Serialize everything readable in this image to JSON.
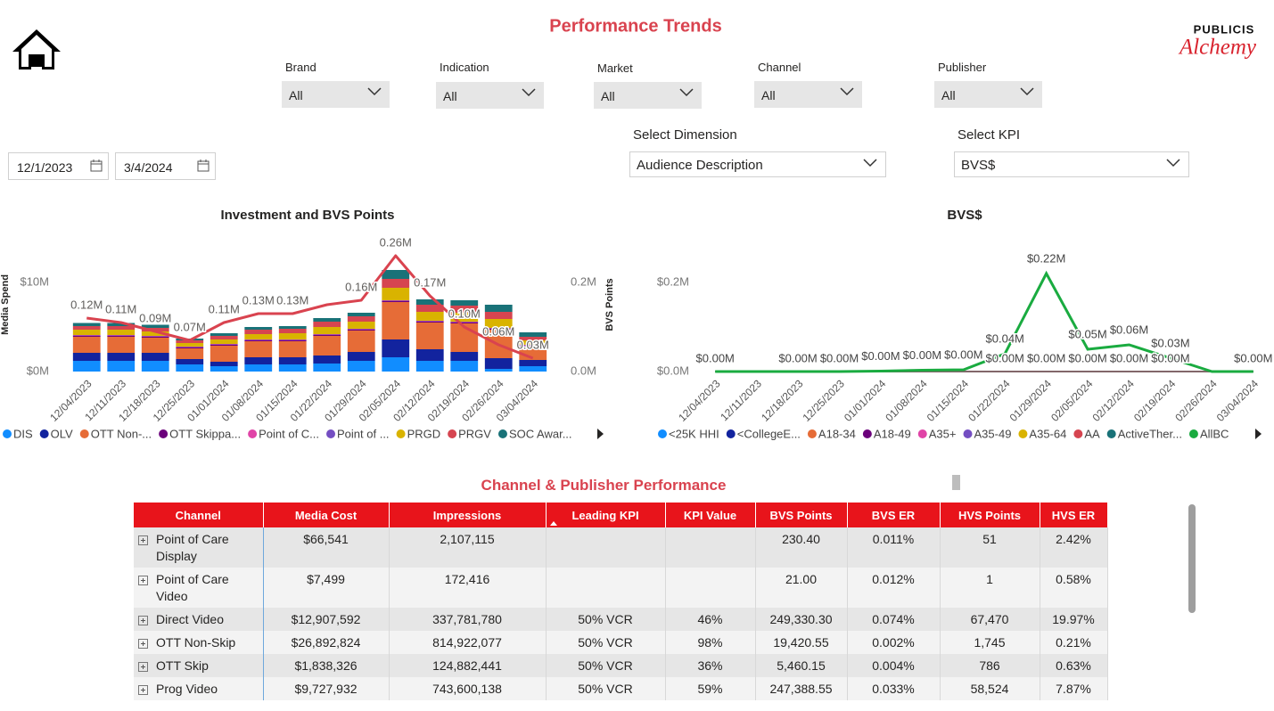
{
  "header": {
    "title": "Performance Trends",
    "logo_top": "PUBLICIS",
    "logo_bottom": "Alchemy"
  },
  "filters": [
    {
      "label": "Brand",
      "value": "All"
    },
    {
      "label": "Indication",
      "value": "All"
    },
    {
      "label": "Market",
      "value": "All"
    },
    {
      "label": "Channel",
      "value": "All"
    },
    {
      "label": "Publisher",
      "value": "All"
    }
  ],
  "dates": {
    "start": "12/1/2023",
    "end": "3/4/2024"
  },
  "selectors": [
    {
      "label": "Select Dimension",
      "value": "Audience Description"
    },
    {
      "label": "Select KPI",
      "value": "BVS$"
    }
  ],
  "chart_data": [
    {
      "type": "stacked_bar_line",
      "title": "Investment and BVS Points",
      "y_label": "Media Spend",
      "y2_label": "BVS Points",
      "categories": [
        "12/04/2023",
        "12/11/2023",
        "12/18/2023",
        "12/25/2023",
        "01/01/2024",
        "01/08/2024",
        "01/15/2024",
        "01/22/2024",
        "01/29/2024",
        "02/05/2024",
        "02/12/2024",
        "02/19/2024",
        "02/26/2024",
        "03/04/2024"
      ],
      "ylim": [
        0,
        12700000
      ],
      "yticks": [
        {
          "value": 0,
          "label": "$0M"
        },
        {
          "value": 10000000,
          "label": "$10M"
        }
      ],
      "y2lim": [
        0,
        254000
      ],
      "y2ticks": [
        {
          "value": 0,
          "label": "0.0M"
        },
        {
          "value": 200000,
          "label": "0.2M"
        }
      ],
      "grid": false,
      "series": [
        {
          "name": "DIS",
          "color": "#118DFF",
          "values": [
            1200000,
            1200000,
            1200000,
            800000,
            600000,
            800000,
            800000,
            900000,
            1200000,
            1600000,
            1200000,
            1200000,
            300000,
            600000
          ]
        },
        {
          "name": "OLV",
          "color": "#12239E",
          "values": [
            900000,
            900000,
            900000,
            600000,
            500000,
            800000,
            800000,
            900000,
            1000000,
            2000000,
            1300000,
            1000000,
            1200000,
            700000
          ]
        },
        {
          "name": "OTT Non-...",
          "color": "#E66C37",
          "values": [
            1800000,
            1800000,
            1700000,
            1200000,
            1800000,
            1800000,
            1800000,
            2200000,
            2400000,
            4200000,
            3000000,
            3200000,
            3200000,
            1500000
          ]
        },
        {
          "name": "OTT Skippa...",
          "color": "#6B007B",
          "values": [
            100000,
            100000,
            100000,
            100000,
            100000,
            100000,
            100000,
            100000,
            100000,
            100000,
            100000,
            100000,
            100000,
            100000
          ]
        },
        {
          "name": "Point of C...",
          "color": "#E044A7",
          "values": [
            50000,
            50000,
            50000,
            50000,
            50000,
            50000,
            50000,
            50000,
            50000,
            50000,
            50000,
            50000,
            50000,
            50000
          ]
        },
        {
          "name": "Point of ...",
          "color": "#744EC2",
          "values": [
            50000,
            50000,
            50000,
            50000,
            50000,
            50000,
            50000,
            50000,
            50000,
            50000,
            50000,
            50000,
            50000,
            50000
          ]
        },
        {
          "name": "PRGD",
          "color": "#D9B300",
          "values": [
            600000,
            600000,
            500000,
            400000,
            500000,
            600000,
            700000,
            800000,
            800000,
            1400000,
            1000000,
            1000000,
            1000000,
            500000
          ]
        },
        {
          "name": "PRGV",
          "color": "#D64550",
          "values": [
            400000,
            400000,
            400000,
            300000,
            400000,
            500000,
            500000,
            600000,
            600000,
            1000000,
            800000,
            800000,
            800000,
            400000
          ]
        },
        {
          "name": "SOC Awar...",
          "color": "#197278",
          "values": [
            350000,
            350000,
            350000,
            200000,
            300000,
            300000,
            300000,
            400000,
            400000,
            1000000,
            600000,
            600000,
            800000,
            500000
          ]
        }
      ],
      "line": {
        "axis": "y2",
        "color": "#D9434F",
        "values": [
          120000,
          110000,
          90000,
          70000,
          110000,
          130000,
          130000,
          150000,
          160000,
          260000,
          170000,
          100000,
          60000,
          30000
        ],
        "value_labels": [
          "0.12M",
          "0.11M",
          "0.09M",
          "0.07M",
          "0.11M",
          "0.13M",
          "0.13M",
          null,
          "0.16M",
          "0.26M",
          "0.17M",
          "0.10M",
          "0.06M",
          "0.03M"
        ]
      }
    },
    {
      "type": "line",
      "title": "BVS$",
      "categories": [
        "12/04/2023",
        "12/11/2023",
        "12/18/2023",
        "12/25/2023",
        "01/01/2024",
        "01/08/2024",
        "01/15/2024",
        "01/22/2024",
        "01/29/2024",
        "02/05/2024",
        "02/12/2024",
        "02/19/2024",
        "02/26/2024",
        "03/04/2024"
      ],
      "ylim": [
        0,
        254000
      ],
      "yticks": [
        {
          "value": 0,
          "label": "$0.0M"
        },
        {
          "value": 200000,
          "label": "$0.2M"
        }
      ],
      "grid": false,
      "series": [
        {
          "name": "<25K HHI",
          "color": "#118DFF",
          "values": [
            0,
            0,
            0,
            0,
            0,
            0,
            0,
            0,
            0,
            0,
            0,
            0,
            0,
            0
          ]
        },
        {
          "name": "<CollegeE...",
          "color": "#12239E",
          "values": [
            0,
            0,
            0,
            0,
            0,
            0,
            0,
            0,
            0,
            0,
            0,
            0,
            0,
            0
          ],
          "value_labels": [
            null,
            null,
            null,
            null,
            null,
            null,
            null,
            "$0.00M",
            "$0.00M",
            "$0.00M",
            "$0.00M",
            "$0.00M",
            null,
            null
          ]
        },
        {
          "name": "A18-34",
          "color": "#E66C37",
          "values": [
            0,
            0,
            0,
            0,
            0,
            0,
            0,
            0,
            0,
            0,
            0,
            0,
            0,
            0
          ]
        },
        {
          "name": "A18-49",
          "color": "#6B007B",
          "values": [
            0,
            0,
            0,
            0,
            0,
            0,
            0,
            0,
            0,
            0,
            0,
            0,
            0,
            0
          ]
        },
        {
          "name": "A35+",
          "color": "#E044A7",
          "values": [
            0,
            0,
            0,
            0,
            0,
            0,
            0,
            0,
            0,
            0,
            0,
            0,
            0,
            0
          ]
        },
        {
          "name": "A35-49",
          "color": "#744EC2",
          "values": [
            0,
            0,
            0,
            0,
            0,
            0,
            0,
            0,
            0,
            0,
            0,
            0,
            0,
            0
          ]
        },
        {
          "name": "A35-64",
          "color": "#D9B300",
          "values": [
            0,
            0,
            0,
            0,
            0,
            0,
            0,
            0,
            0,
            0,
            0,
            0,
            0,
            0
          ]
        },
        {
          "name": "AA",
          "color": "#D64550",
          "values": [
            0,
            0,
            0,
            0,
            0,
            0,
            0,
            0,
            0,
            0,
            0,
            0,
            0,
            0
          ]
        },
        {
          "name": "ActiveTher...",
          "color": "#197278",
          "values": [
            0,
            0,
            0,
            0,
            0,
            0,
            0,
            0,
            0,
            0,
            0,
            0,
            0,
            0
          ]
        },
        {
          "name": "AllBC",
          "color": "#1AAB40",
          "values": [
            0,
            0,
            0,
            0,
            1000,
            3000,
            4000,
            40000,
            220000,
            50000,
            60000,
            30000,
            0,
            0
          ],
          "value_labels": [
            "$0.00M",
            null,
            "$0.00M",
            "$0.00M",
            "$0.00M",
            "$0.00M",
            "$0.00M",
            "$0.04M",
            "$0.22M",
            "$0.05M",
            "$0.06M",
            "$0.03M",
            null,
            "$0.00M"
          ]
        }
      ]
    }
  ],
  "table": {
    "title": "Channel & Publisher Performance",
    "columns": [
      "Channel",
      "Media Cost",
      "Impressions",
      "Leading KPI",
      "KPI Value",
      "BVS Points",
      "BVS ER",
      "HVS Points",
      "HVS ER"
    ],
    "rows": [
      [
        "Point of Care Display",
        "$66,541",
        "2,107,115",
        null,
        null,
        "230.40",
        "0.011%",
        "51",
        "2.42%"
      ],
      [
        "Point of Care Video",
        "$7,499",
        "172,416",
        null,
        null,
        "21.00",
        "0.012%",
        "1",
        "0.58%"
      ],
      [
        "Direct Video",
        "$12,907,592",
        "337,781,780",
        "50% VCR",
        "46%",
        "249,330.30",
        "0.074%",
        "67,470",
        "19.97%"
      ],
      [
        "OTT Non-Skip",
        "$26,892,824",
        "814,922,077",
        "50% VCR",
        "98%",
        "19,420.55",
        "0.002%",
        "1,745",
        "0.21%"
      ],
      [
        "OTT Skip",
        "$1,838,326",
        "124,882,441",
        "50% VCR",
        "36%",
        "5,460.15",
        "0.004%",
        "786",
        "0.63%"
      ],
      [
        "Prog Video",
        "$9,727,932",
        "743,600,138",
        "50% VCR",
        "59%",
        "247,388.55",
        "0.033%",
        "58,524",
        "7.87%"
      ]
    ]
  }
}
